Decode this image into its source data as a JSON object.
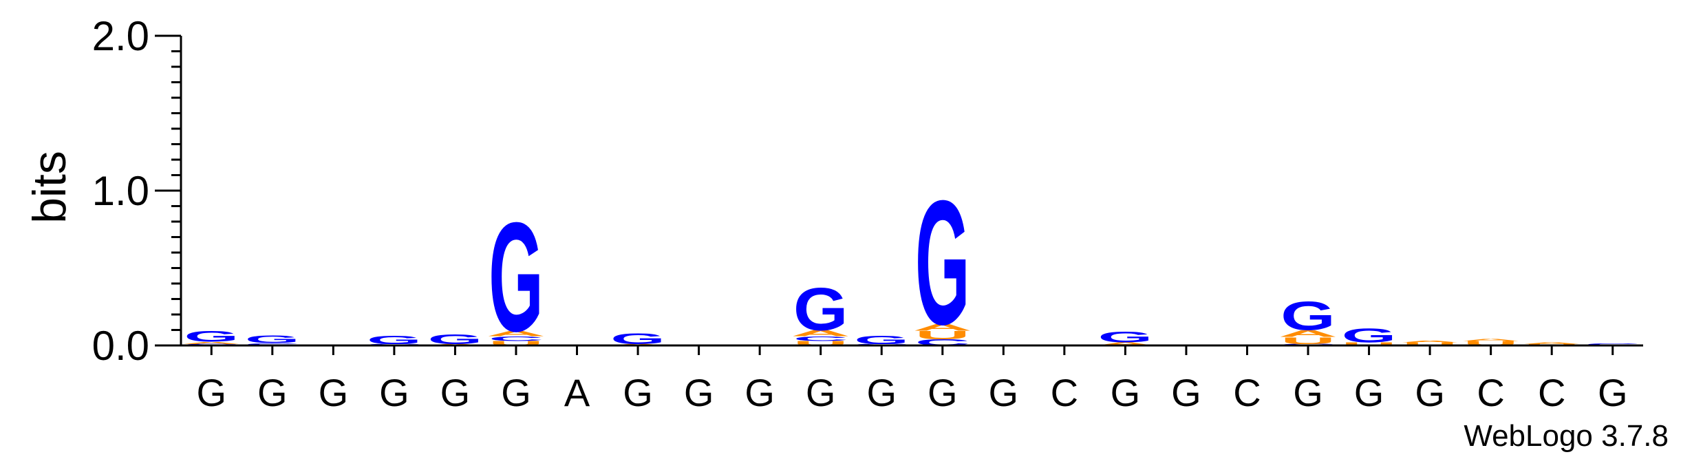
{
  "chart_data": {
    "type": "sequence-logo",
    "ylabel": "bits",
    "ylim": [
      0,
      2.0
    ],
    "yticks": [
      {
        "value": 0.0,
        "label": "0.0"
      },
      {
        "value": 1.0,
        "label": "1.0"
      },
      {
        "value": 2.0,
        "label": "2.0"
      }
    ],
    "yminor_step": 0.1,
    "positions": [
      "G",
      "G",
      "G",
      "G",
      "G",
      "G",
      "A",
      "G",
      "G",
      "G",
      "G",
      "G",
      "G",
      "G",
      "C",
      "G",
      "G",
      "C",
      "G",
      "G",
      "G",
      "C",
      "C",
      "G"
    ],
    "stacks": [
      [
        {
          "letter": "C",
          "bits": 0.01
        },
        {
          "letter": "A",
          "bits": 0.015
        },
        {
          "letter": "G",
          "bits": 0.07
        }
      ],
      [
        {
          "letter": "C",
          "bits": 0.015
        },
        {
          "letter": "G",
          "bits": 0.05
        }
      ],
      [],
      [
        {
          "letter": "C",
          "bits": 0.01
        },
        {
          "letter": "G",
          "bits": 0.055
        }
      ],
      [
        {
          "letter": "A",
          "bits": 0.01
        },
        {
          "letter": "G",
          "bits": 0.065
        }
      ],
      [
        {
          "letter": "U",
          "bits": 0.03
        },
        {
          "letter": "C",
          "bits": 0.03
        },
        {
          "letter": "A",
          "bits": 0.035
        },
        {
          "letter": "G",
          "bits": 0.72
        }
      ],
      [],
      [
        {
          "letter": "A",
          "bits": 0.01
        },
        {
          "letter": "G",
          "bits": 0.07
        }
      ],
      [],
      [
        {
          "letter": "C",
          "bits": 0.005
        }
      ],
      [
        {
          "letter": "U",
          "bits": 0.03
        },
        {
          "letter": "C",
          "bits": 0.03
        },
        {
          "letter": "A",
          "bits": 0.04
        },
        {
          "letter": "G",
          "bits": 0.28
        }
      ],
      [
        {
          "letter": "C",
          "bits": 0.01
        },
        {
          "letter": "G",
          "bits": 0.055
        }
      ],
      [
        {
          "letter": "C",
          "bits": 0.04
        },
        {
          "letter": "U",
          "bits": 0.055
        },
        {
          "letter": "A",
          "bits": 0.045
        },
        {
          "letter": "G",
          "bits": 0.82
        }
      ],
      [],
      [],
      [
        {
          "letter": "A",
          "bits": 0.02
        },
        {
          "letter": "G",
          "bits": 0.07
        }
      ],
      [],
      [],
      [
        {
          "letter": "C",
          "bits": 0.01
        },
        {
          "letter": "U",
          "bits": 0.045
        },
        {
          "letter": "A",
          "bits": 0.045
        },
        {
          "letter": "G",
          "bits": 0.19
        }
      ],
      [
        {
          "letter": "U",
          "bits": 0.02
        },
        {
          "letter": "G",
          "bits": 0.09
        }
      ],
      [
        {
          "letter": "U",
          "bits": 0.02
        },
        {
          "letter": "A",
          "bits": 0.01
        }
      ],
      [
        {
          "letter": "U",
          "bits": 0.03
        },
        {
          "letter": "A",
          "bits": 0.015
        }
      ],
      [
        {
          "letter": "U",
          "bits": 0.01
        },
        {
          "letter": "A",
          "bits": 0.01
        }
      ],
      [
        {
          "letter": "C",
          "bits": 0.015
        }
      ]
    ],
    "colors": {
      "G": "#0000ff",
      "A": "#ff8c00",
      "U": "#ff8c00",
      "C": "#0000ff"
    },
    "axis_color": "#000000",
    "credit": "WebLogo 3.7.8"
  }
}
